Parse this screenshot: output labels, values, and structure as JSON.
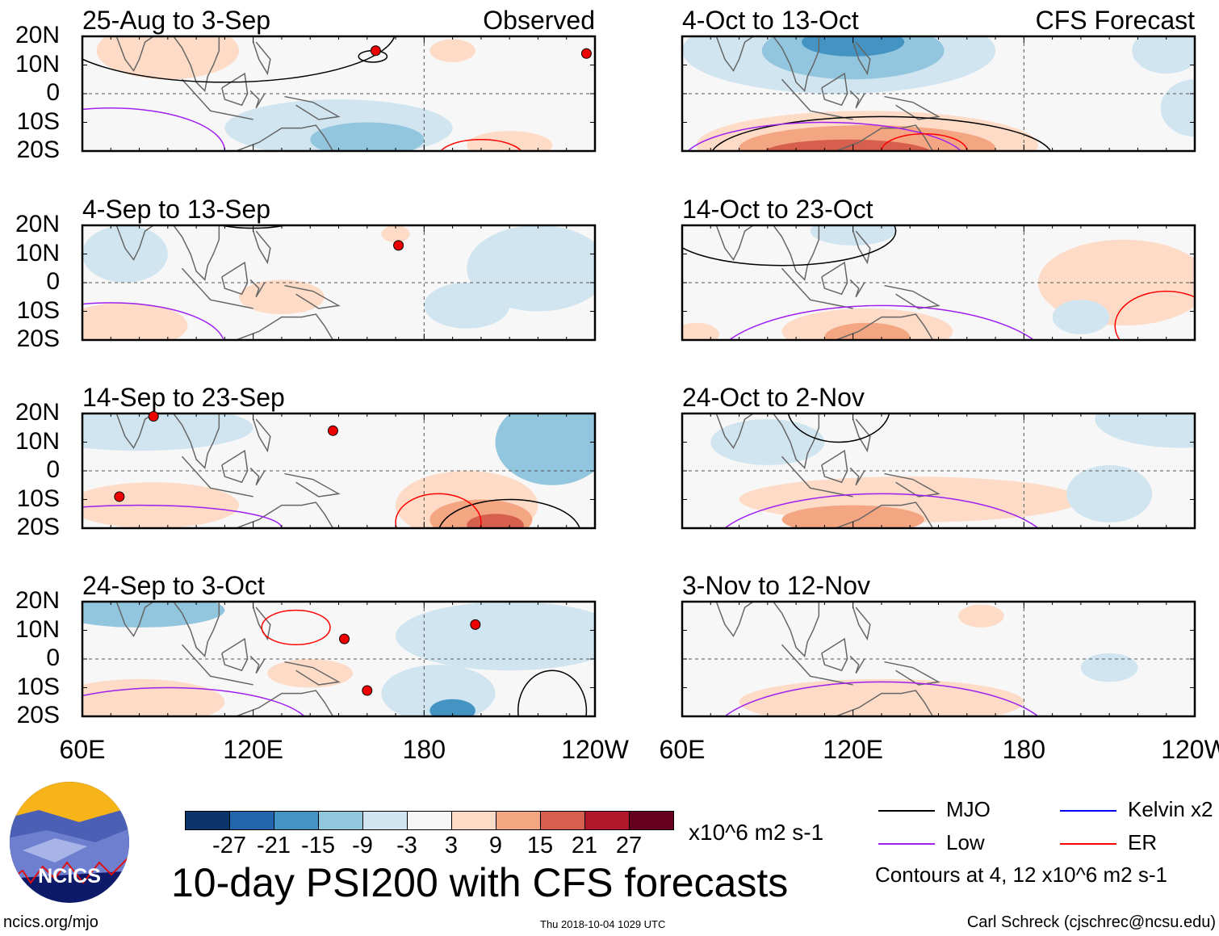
{
  "panels": [
    {
      "title": "25-Aug to 3-Sep",
      "tag": "Observed"
    },
    {
      "title": "4-Sep to 13-Sep"
    },
    {
      "title": "14-Sep to 23-Sep"
    },
    {
      "title": "24-Sep to 3-Oct"
    },
    {
      "title": "4-Oct to 13-Oct",
      "tag": "CFS Forecast"
    },
    {
      "title": "14-Oct to 23-Oct"
    },
    {
      "title": "24-Oct to 2-Nov"
    },
    {
      "title": "3-Nov to 12-Nov"
    }
  ],
  "lat_labels": [
    "20N",
    "10N",
    "0",
    "10S",
    "20S"
  ],
  "lon_labels": [
    "60E",
    "120E",
    "180",
    "120W"
  ],
  "colorbar": {
    "colors": [
      "#0b3468",
      "#2166ac",
      "#4393c3",
      "#92c5de",
      "#d1e5f0",
      "#f7f7f7",
      "#fddbc7",
      "#f4a582",
      "#d6604d",
      "#b2182b",
      "#67001f"
    ],
    "labels": [
      "-27",
      "-21",
      "-15",
      "-9",
      "-3",
      "3",
      "9",
      "15",
      "21",
      "27"
    ],
    "units": "x10^6 m2 s-1"
  },
  "title": "10-day PSI200 with CFS forecasts",
  "legend": [
    {
      "label": "MJO",
      "color": "#000000"
    },
    {
      "label": "Kelvin x2",
      "color": "#0000ff"
    },
    {
      "label": "Low",
      "color": "#a020f0"
    },
    {
      "label": "ER",
      "color": "#ff0000"
    }
  ],
  "contours_note": "Contours at 4, 12 x10^6 m2 s-1",
  "logo_text": "NCICS",
  "footer": {
    "url": "ncics.org/mjo",
    "timestamp": "Thu 2018-10-04 1029 UTC",
    "author": "Carl Schreck (cjschrec@ncsu.edu)"
  }
}
